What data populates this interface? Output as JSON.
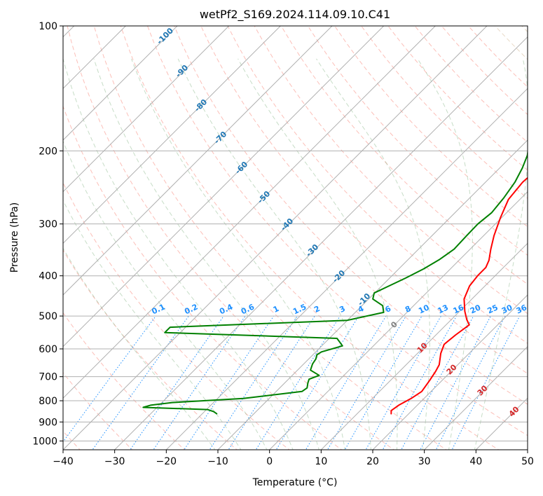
{
  "chart_data": {
    "type": "line",
    "title": "wetPf2_S169.2024.114.09.10.C41",
    "xlabel": "Temperature (°C)",
    "ylabel": "Pressure (hPa)",
    "xlim": [
      -40,
      50
    ],
    "ylim": [
      1050,
      100
    ],
    "y_scale": "log",
    "grid": true,
    "x_ticks": [
      -40,
      -30,
      -20,
      -10,
      0,
      10,
      20,
      30,
      40,
      50
    ],
    "y_ticks": [
      100,
      200,
      300,
      400,
      500,
      600,
      700,
      800,
      900,
      1000
    ],
    "series": [
      {
        "kind": "temperature",
        "color": "#ff0000",
        "points": [
          [
            16.6,
            860
          ],
          [
            16.0,
            845
          ],
          [
            16.4,
            820
          ],
          [
            17.5,
            790
          ],
          [
            18.2,
            760
          ],
          [
            17.6,
            715
          ],
          [
            17.0,
            680
          ],
          [
            16.4,
            655
          ],
          [
            14.5,
            615
          ],
          [
            13.4,
            585
          ],
          [
            13.8,
            555
          ],
          [
            14.5,
            525
          ],
          [
            13.0,
            510
          ],
          [
            11.0,
            487
          ],
          [
            8.5,
            455
          ],
          [
            7.0,
            423
          ],
          [
            6.6,
            400
          ],
          [
            6.6,
            382
          ],
          [
            5.8,
            367
          ],
          [
            4.0,
            345
          ],
          [
            2.0,
            320
          ],
          [
            -0.2,
            290
          ],
          [
            -2.2,
            262
          ],
          [
            -2.8,
            238
          ],
          [
            -2.4,
            217
          ],
          [
            -1.0,
            205
          ],
          [
            1.5,
            195
          ],
          [
            4.7,
            185
          ],
          [
            6.1,
            173
          ],
          [
            7.4,
            160
          ],
          [
            9.7,
            146
          ],
          [
            11.5,
            134
          ],
          [
            13.8,
            120
          ],
          [
            16.0,
            109
          ],
          [
            18.3,
            100
          ]
        ]
      },
      {
        "kind": "dewpoint",
        "color": "#008000",
        "points": [
          [
            -17.2,
            860
          ],
          [
            -18.2,
            850
          ],
          [
            -19.8,
            840
          ],
          [
            -32.7,
            830
          ],
          [
            -31.7,
            820
          ],
          [
            -28.0,
            808
          ],
          [
            -15.0,
            790
          ],
          [
            -5.0,
            760
          ],
          [
            -4.7,
            745
          ],
          [
            -5.5,
            725
          ],
          [
            -6.0,
            710
          ],
          [
            -4.8,
            695
          ],
          [
            -7.5,
            675
          ],
          [
            -8.3,
            652
          ],
          [
            -8.6,
            635
          ],
          [
            -9.2,
            620
          ],
          [
            -8.9,
            610
          ],
          [
            -6.0,
            590
          ],
          [
            -8.5,
            566
          ],
          [
            -43.0,
            548
          ],
          [
            -43.0,
            532
          ],
          [
            -10.0,
            512
          ],
          [
            -4.5,
            490
          ],
          [
            -6.0,
            472
          ],
          [
            -9.2,
            455
          ],
          [
            -10.1,
            440
          ],
          [
            -8.5,
            422
          ],
          [
            -6.9,
            405
          ],
          [
            -5.2,
            385
          ],
          [
            -3.9,
            365
          ],
          [
            -3.1,
            345
          ],
          [
            -3.3,
            320
          ],
          [
            -3.4,
            300
          ],
          [
            -2.9,
            282
          ],
          [
            -3.4,
            260
          ],
          [
            -4.3,
            238
          ],
          [
            -5.6,
            220
          ],
          [
            -7.1,
            205
          ],
          [
            -9.4,
            190
          ],
          [
            -11.0,
            180
          ],
          [
            -10.3,
            170
          ],
          [
            -6.6,
            158
          ],
          [
            -4.9,
            147
          ],
          [
            -3.5,
            136
          ],
          [
            -2.5,
            125
          ],
          [
            -0.7,
            115
          ],
          [
            0.4,
            108
          ],
          [
            0.9,
            100
          ]
        ]
      }
    ],
    "isotherm_labels": [
      "-100",
      "-90",
      "-80",
      "-70",
      "-60",
      "-50",
      "-40",
      "-30",
      "-20",
      "-10"
    ],
    "mixing_ratio_labels": [
      "0.1",
      "0.2",
      "0.4",
      "0.6",
      "1",
      "1.5",
      "2",
      "3",
      "4",
      "6",
      "8",
      "10",
      "13",
      "16",
      "20",
      "25",
      "30",
      "36"
    ],
    "dry_adiabat_labels": [
      "0",
      "10",
      "20",
      "30",
      "40"
    ],
    "colors": {
      "temperature": "#ff0000",
      "dewpoint": "#008000",
      "isotherm_label": "#1f77b4",
      "mixing_ratio": "#1e90ff",
      "dry_adiabat": "#fa8072",
      "moist_adiabat": "#8fbc8f",
      "grid": "#b0b0b0"
    }
  }
}
